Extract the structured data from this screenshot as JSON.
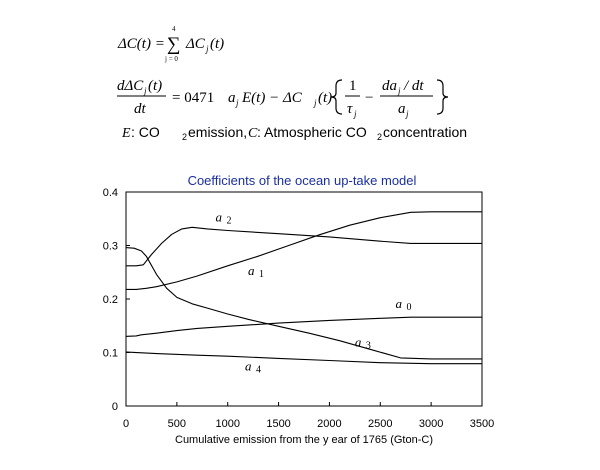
{
  "equations": {
    "eq1": {
      "lhs": "ΔC(t) =",
      "sum_top": "4",
      "sum_sym": "∑",
      "sum_bottom": "j = 0",
      "rhs": "ΔC",
      "rhs_sub": "j",
      "rhs_tail": "(t)"
    },
    "eq2": {
      "frac_num": "dΔC",
      "frac_num_sub": "j",
      "frac_num_tail": "(t)",
      "frac_den": "dt",
      "middle": "= 0471",
      "a": "a",
      "a_sub": "j",
      "after_a": "E(t) − ΔC",
      "after_a_sub": "j",
      "after_a_tail": "(t)",
      "inner_one": "1",
      "inner_tau": "τ",
      "inner_tau_sub": "j",
      "inner_minus": "−",
      "inner_num": "da",
      "inner_num_sub": "j",
      "inner_num_tail": "/ dt",
      "inner_den": "a",
      "inner_den_sub": "j"
    },
    "legend": {
      "e_sym": "E",
      "e_text": ":  CO",
      "e_sub": "2",
      "e_tail": " emission,",
      "c_sym": "C",
      "c_text": ": Atmospheric CO",
      "c_sub": "2",
      "c_tail": " concentration"
    }
  },
  "chart_data": {
    "type": "line",
    "title": "Coefficients of the ocean up-take model",
    "xlabel": "Cumulative emission from the y ear of 1765 (Gton-C)",
    "ylabel": "",
    "xlim": [
      0,
      3500
    ],
    "ylim": [
      0,
      0.4
    ],
    "x_ticks": [
      "0",
      "500",
      "1000",
      "1500",
      "2000",
      "2500",
      "3000",
      "3500"
    ],
    "y_ticks": [
      "0",
      "0.1",
      "0.2",
      "0.3",
      "0.4"
    ],
    "title_color": "#1a2fa0",
    "line_color": "#000000",
    "grid": false,
    "series": [
      {
        "name": "a0",
        "label": "a",
        "label_sub": "0",
        "label_at": [
          2650,
          0.183
        ],
        "points": [
          [
            0,
            0.13
          ],
          [
            100,
            0.131
          ],
          [
            150,
            0.133
          ],
          [
            300,
            0.136
          ],
          [
            500,
            0.141
          ],
          [
            700,
            0.145
          ],
          [
            1000,
            0.149
          ],
          [
            1500,
            0.155
          ],
          [
            2000,
            0.16
          ],
          [
            2500,
            0.164
          ],
          [
            2800,
            0.166
          ],
          [
            3500,
            0.166
          ]
        ]
      },
      {
        "name": "a1",
        "label": "a",
        "label_sub": "1",
        "label_at": [
          1200,
          0.245
        ],
        "points": [
          [
            0,
            0.218
          ],
          [
            100,
            0.218
          ],
          [
            200,
            0.22
          ],
          [
            300,
            0.223
          ],
          [
            500,
            0.232
          ],
          [
            700,
            0.243
          ],
          [
            1000,
            0.262
          ],
          [
            1300,
            0.28
          ],
          [
            1600,
            0.3
          ],
          [
            1900,
            0.32
          ],
          [
            2200,
            0.338
          ],
          [
            2500,
            0.352
          ],
          [
            2800,
            0.362
          ],
          [
            3000,
            0.363
          ],
          [
            3500,
            0.363
          ]
        ]
      },
      {
        "name": "a2",
        "label": "a",
        "label_sub": "2",
        "label_at": [
          880,
          0.345
        ],
        "points": [
          [
            0,
            0.262
          ],
          [
            100,
            0.262
          ],
          [
            170,
            0.264
          ],
          [
            250,
            0.283
          ],
          [
            350,
            0.304
          ],
          [
            450,
            0.321
          ],
          [
            550,
            0.331
          ],
          [
            650,
            0.334
          ],
          [
            800,
            0.331
          ],
          [
            1000,
            0.328
          ],
          [
            1500,
            0.322
          ],
          [
            2000,
            0.316
          ],
          [
            2500,
            0.308
          ],
          [
            2800,
            0.304
          ],
          [
            3500,
            0.304
          ]
        ]
      },
      {
        "name": "a3",
        "label": "a",
        "label_sub": "3",
        "label_at": [
          2250,
          0.111
        ],
        "points": [
          [
            0,
            0.296
          ],
          [
            80,
            0.295
          ],
          [
            150,
            0.29
          ],
          [
            200,
            0.28
          ],
          [
            300,
            0.246
          ],
          [
            400,
            0.22
          ],
          [
            500,
            0.203
          ],
          [
            650,
            0.191
          ],
          [
            800,
            0.183
          ],
          [
            1000,
            0.172
          ],
          [
            1200,
            0.162
          ],
          [
            1500,
            0.149
          ],
          [
            1800,
            0.136
          ],
          [
            2100,
            0.122
          ],
          [
            2400,
            0.106
          ],
          [
            2700,
            0.09
          ],
          [
            3000,
            0.088
          ],
          [
            3500,
            0.088
          ]
        ]
      },
      {
        "name": "a4",
        "label": "a",
        "label_sub": "4",
        "label_at": [
          1170,
          0.066
        ],
        "points": [
          [
            0,
            0.101
          ],
          [
            300,
            0.098
          ],
          [
            700,
            0.095
          ],
          [
            1000,
            0.093
          ],
          [
            1500,
            0.089
          ],
          [
            2000,
            0.085
          ],
          [
            2500,
            0.081
          ],
          [
            3000,
            0.079
          ],
          [
            3500,
            0.079
          ]
        ]
      }
    ]
  }
}
